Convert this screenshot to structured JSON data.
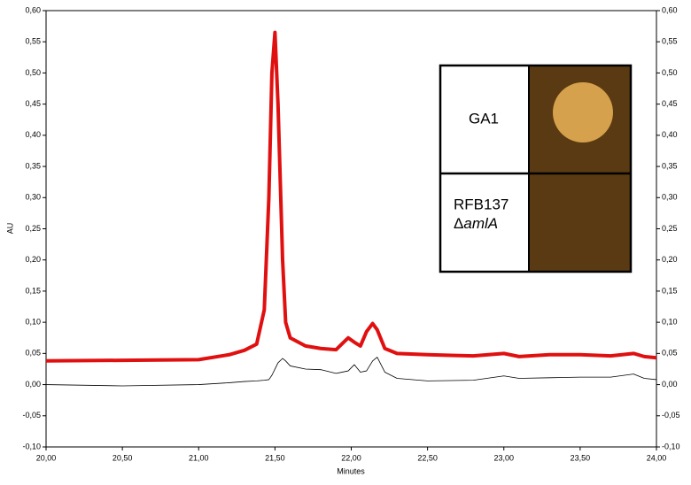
{
  "chart_data": {
    "type": "line",
    "xlabel": "Minutes",
    "ylabel": "AU",
    "x": [
      20.0,
      20.5,
      21.0,
      21.2,
      21.3,
      21.38,
      21.43,
      21.46,
      21.48,
      21.5,
      21.52,
      21.55,
      21.57,
      21.6,
      21.7,
      21.8,
      21.9,
      21.98,
      22.02,
      22.06,
      22.1,
      22.14,
      22.17,
      22.22,
      22.3,
      22.5,
      22.8,
      23.0,
      23.1,
      23.3,
      23.5,
      23.7,
      23.85,
      23.92,
      24.0
    ],
    "series": [
      {
        "color": "#e01010",
        "values": [
          0.038,
          0.039,
          0.04,
          0.048,
          0.055,
          0.065,
          0.12,
          0.3,
          0.5,
          0.565,
          0.45,
          0.2,
          0.1,
          0.075,
          0.062,
          0.058,
          0.056,
          0.075,
          0.068,
          0.062,
          0.085,
          0.098,
          0.088,
          0.058,
          0.05,
          0.048,
          0.046,
          0.05,
          0.045,
          0.048,
          0.048,
          0.046,
          0.05,
          0.045,
          0.043
        ]
      },
      {
        "color": "#000000",
        "values": [
          0,
          -0.002,
          0,
          0.003,
          0.005,
          0.006,
          0.007,
          0.008,
          0.015,
          0.025,
          0.035,
          0.042,
          0.038,
          0.03,
          0.025,
          0.024,
          0.018,
          0.022,
          0.032,
          0.02,
          0.022,
          0.038,
          0.044,
          0.02,
          0.01,
          0.006,
          0.007,
          0.014,
          0.01,
          0.011,
          0.012,
          0.012,
          0.017,
          0.01,
          0.008
        ]
      }
    ],
    "xlim": [
      20,
      24
    ],
    "xticks": [
      {
        "value": 20,
        "label": "20,00"
      },
      {
        "value": 20.5,
        "label": "20,50"
      },
      {
        "value": 21,
        "label": "21,00"
      },
      {
        "value": 21.5,
        "label": "21,50"
      },
      {
        "value": 22,
        "label": "22,00"
      },
      {
        "value": 22.5,
        "label": "22,50"
      },
      {
        "value": 23,
        "label": "23,00"
      },
      {
        "value": 23.5,
        "label": "23,50"
      },
      {
        "value": 24,
        "label": "24,00"
      }
    ],
    "ylim": [
      -0.1,
      0.6
    ],
    "yticks": [
      {
        "value": -0.1,
        "label": "-0,10"
      },
      {
        "value": -0.05,
        "label": "-0,05"
      },
      {
        "value": 0,
        "label": "0,00"
      },
      {
        "value": 0.05,
        "label": "0,05"
      },
      {
        "value": 0.1,
        "label": "0,10"
      },
      {
        "value": 0.15,
        "label": "0,15"
      },
      {
        "value": 0.2,
        "label": "0,20"
      },
      {
        "value": 0.25,
        "label": "0,25"
      },
      {
        "value": 0.3,
        "label": "0,30"
      },
      {
        "value": 0.35,
        "label": "0,35"
      },
      {
        "value": 0.4,
        "label": "0,40"
      },
      {
        "value": 0.45,
        "label": "0,45"
      },
      {
        "value": 0.5,
        "label": "0,50"
      },
      {
        "value": 0.55,
        "label": "0,55"
      },
      {
        "value": 0.6,
        "label": "0,60"
      }
    ],
    "annotations": [
      "GA1",
      "RFB137",
      "Δ",
      "amlA"
    ]
  }
}
